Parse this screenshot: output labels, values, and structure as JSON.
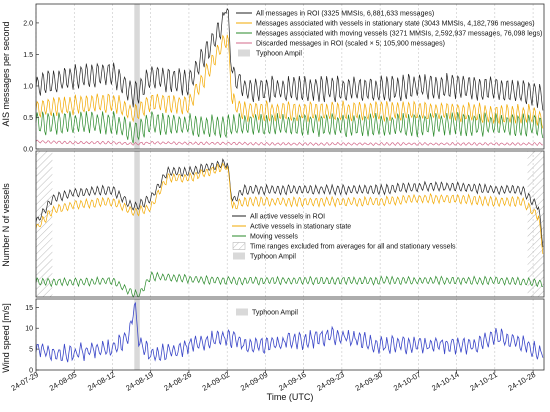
{
  "x_axis": {
    "label": "Time (UTC)",
    "start": "2024-07-29",
    "end": "2024-10-30",
    "ticks": [
      "24-07-29",
      "24-08-05",
      "24-08-12",
      "24-08-19",
      "24-08-26",
      "24-09-02",
      "24-09-09",
      "24-09-16",
      "24-09-23",
      "24-09-30",
      "24-10-07",
      "24-10-14",
      "24-10-21",
      "24-10-28"
    ]
  },
  "typhoon_band": {
    "start": "2024-08-16",
    "end": "2024-08-17"
  },
  "excluded_ranges": [
    {
      "start": "2024-07-29",
      "end": "2024-08-01"
    },
    {
      "start": "2024-10-27",
      "end": "2024-10-30"
    }
  ],
  "colors": {
    "all_messages": "#222222",
    "stationary": "#f2a900",
    "moving": "#2a8a2a",
    "discarded": "#d36a8a",
    "wind": "#3a46c8",
    "typhoon_band": "#d9d9d9",
    "grid": "#bbbbbb"
  },
  "chart_data": [
    {
      "type": "line",
      "ylabel": "AIS messages per second",
      "ylim": [
        0,
        2.3
      ],
      "yticks": [
        "0.0",
        "0.5",
        "1.0",
        "1.5",
        "2.0"
      ],
      "legend_position": "top-right",
      "legend": [
        "All messages in ROI (3325 MMSIs, 6,881,633 messages)",
        "Messages associated with vessels in stationary state (3043 MMSIs, 4,182,796 messages)",
        "Messages associated with moving vessels (3271 MMSIs, 2,592,937 messages, 76,098 legs)",
        "Discarded messages in ROI (scaled × 5; 105,900 messages)",
        "Typhoon Ampil"
      ],
      "series": [
        {
          "name": "All messages in ROI (3325 MMSIs, 6,881,633 messages)",
          "x": [
            "2024-07-29",
            "2024-08-05",
            "2024-08-12",
            "2024-08-16",
            "2024-08-19",
            "2024-08-26",
            "2024-09-02",
            "2024-09-03",
            "2024-09-05",
            "2024-09-09",
            "2024-09-16",
            "2024-09-23",
            "2024-09-30",
            "2024-10-07",
            "2024-10-14",
            "2024-10-21",
            "2024-10-28",
            "2024-10-30"
          ],
          "values": [
            1.0,
            1.15,
            1.2,
            0.85,
            1.15,
            1.05,
            2.1,
            1.2,
            0.95,
            0.95,
            0.95,
            0.95,
            0.95,
            1.0,
            1.0,
            0.95,
            0.9,
            0.8
          ]
        },
        {
          "name": "Messages associated with vessels in stationary state (3043 MMSIs, 4,182,796 messages)",
          "x": [
            "2024-07-29",
            "2024-08-05",
            "2024-08-12",
            "2024-08-16",
            "2024-08-19",
            "2024-08-26",
            "2024-09-02",
            "2024-09-03",
            "2024-09-05",
            "2024-09-09",
            "2024-09-16",
            "2024-09-23",
            "2024-09-30",
            "2024-10-07",
            "2024-10-14",
            "2024-10-21",
            "2024-10-28",
            "2024-10-30"
          ],
          "values": [
            0.65,
            0.7,
            0.75,
            0.55,
            0.75,
            0.7,
            1.8,
            0.75,
            0.6,
            0.6,
            0.6,
            0.6,
            0.6,
            0.6,
            0.6,
            0.55,
            0.55,
            0.45
          ]
        },
        {
          "name": "Messages associated with moving vessels (3271 MMSIs, 2,592,937 messages, 76,098 legs)",
          "x": [
            "2024-07-29",
            "2024-08-05",
            "2024-08-12",
            "2024-08-16",
            "2024-08-19",
            "2024-08-26",
            "2024-09-02",
            "2024-09-03",
            "2024-09-05",
            "2024-09-09",
            "2024-09-16",
            "2024-09-23",
            "2024-09-30",
            "2024-10-07",
            "2024-10-14",
            "2024-10-21",
            "2024-10-28",
            "2024-10-30"
          ],
          "values": [
            0.4,
            0.42,
            0.42,
            0.25,
            0.42,
            0.38,
            0.35,
            0.38,
            0.38,
            0.38,
            0.38,
            0.38,
            0.38,
            0.38,
            0.4,
            0.38,
            0.38,
            0.35
          ]
        },
        {
          "name": "Discarded messages in ROI (scaled × 5; 105,900 messages)",
          "x": [
            "2024-07-29",
            "2024-08-05",
            "2024-08-12",
            "2024-08-16",
            "2024-08-19",
            "2024-08-26",
            "2024-09-02",
            "2024-09-09",
            "2024-09-16",
            "2024-09-23",
            "2024-09-30",
            "2024-10-07",
            "2024-10-14",
            "2024-10-21",
            "2024-10-28",
            "2024-10-30"
          ],
          "values": [
            0.12,
            0.1,
            0.1,
            0.08,
            0.1,
            0.09,
            0.09,
            0.08,
            0.08,
            0.08,
            0.08,
            0.08,
            0.08,
            0.08,
            0.08,
            0.08
          ]
        }
      ]
    },
    {
      "type": "line",
      "ylabel": "Number N of vessels",
      "ylim": [
        0,
        490
      ],
      "legend_position": "center-right",
      "legend": [
        "All active vessels in ROI",
        "Active vessels in stationary state",
        "Moving vessels",
        "Time ranges excluded from averages for all and stationary vessels",
        "Typhoon Ampil"
      ],
      "series": [
        {
          "name": "All active vessels in ROI",
          "x": [
            "2024-07-29",
            "2024-08-01",
            "2024-08-05",
            "2024-08-12",
            "2024-08-16",
            "2024-08-19",
            "2024-08-22",
            "2024-08-26",
            "2024-09-02",
            "2024-09-03",
            "2024-09-05",
            "2024-09-09",
            "2024-09-16",
            "2024-09-23",
            "2024-09-30",
            "2024-10-07",
            "2024-10-14",
            "2024-10-21",
            "2024-10-26",
            "2024-10-29",
            "2024-10-30"
          ],
          "values": [
            250,
            330,
            350,
            360,
            300,
            330,
            420,
            420,
            450,
            320,
            360,
            360,
            360,
            360,
            360,
            370,
            370,
            360,
            360,
            300,
            150
          ]
        },
        {
          "name": "Active vessels in stationary state",
          "x": [
            "2024-07-29",
            "2024-08-01",
            "2024-08-05",
            "2024-08-12",
            "2024-08-16",
            "2024-08-19",
            "2024-08-22",
            "2024-08-26",
            "2024-09-02",
            "2024-09-03",
            "2024-09-05",
            "2024-09-09",
            "2024-09-16",
            "2024-09-23",
            "2024-09-30",
            "2024-10-07",
            "2024-10-14",
            "2024-10-21",
            "2024-10-26",
            "2024-10-29",
            "2024-10-30"
          ],
          "values": [
            230,
            290,
            310,
            320,
            285,
            300,
            400,
            400,
            440,
            300,
            320,
            320,
            320,
            320,
            320,
            330,
            330,
            320,
            320,
            270,
            130
          ]
        },
        {
          "name": "Moving vessels",
          "x": [
            "2024-07-29",
            "2024-08-05",
            "2024-08-12",
            "2024-08-16",
            "2024-08-17",
            "2024-08-19",
            "2024-08-26",
            "2024-09-02",
            "2024-09-09",
            "2024-09-16",
            "2024-09-23",
            "2024-09-30",
            "2024-10-07",
            "2024-10-14",
            "2024-10-21",
            "2024-10-28",
            "2024-10-30"
          ],
          "values": [
            50,
            50,
            55,
            10,
            10,
            70,
            60,
            55,
            55,
            55,
            55,
            55,
            55,
            55,
            55,
            50,
            45
          ]
        }
      ]
    },
    {
      "type": "line",
      "ylabel": "Wind speed [m/s]",
      "ylim": [
        0,
        17
      ],
      "yticks": [
        "0",
        "5",
        "10",
        "15"
      ],
      "legend_position": "top-center",
      "legend": [
        "Typhoon Ampil"
      ],
      "series": [
        {
          "name": "Wind speed",
          "x": [
            "2024-07-29",
            "2024-08-02",
            "2024-08-05",
            "2024-08-09",
            "2024-08-12",
            "2024-08-15",
            "2024-08-16",
            "2024-08-17",
            "2024-08-19",
            "2024-08-22",
            "2024-08-26",
            "2024-08-30",
            "2024-09-02",
            "2024-09-06",
            "2024-09-09",
            "2024-09-13",
            "2024-09-16",
            "2024-09-20",
            "2024-09-23",
            "2024-09-27",
            "2024-09-30",
            "2024-10-04",
            "2024-10-07",
            "2024-10-11",
            "2024-10-14",
            "2024-10-18",
            "2024-10-21",
            "2024-10-25",
            "2024-10-28",
            "2024-10-30"
          ],
          "values": [
            5,
            4,
            4,
            5,
            5,
            8,
            16,
            6,
            4,
            4,
            6,
            7,
            8,
            6,
            6,
            7,
            7,
            8,
            8,
            7,
            6,
            6,
            6,
            6,
            6,
            6,
            8,
            7,
            5,
            4
          ]
        }
      ]
    }
  ]
}
